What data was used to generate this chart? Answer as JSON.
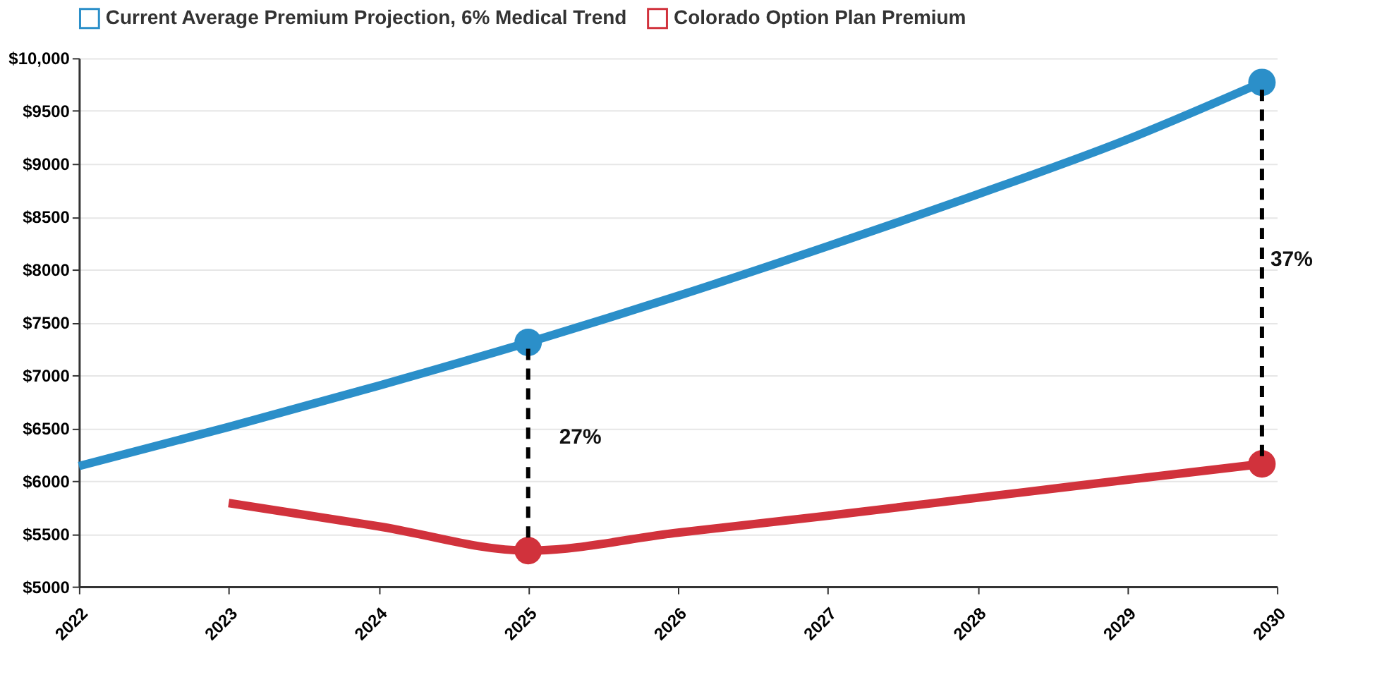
{
  "chart_data": {
    "type": "line",
    "xlim": [
      2022,
      2030
    ],
    "xticks": [
      2022,
      2023,
      2024,
      2025,
      2026,
      2027,
      2028,
      2029,
      2030
    ],
    "ylim": [
      5000,
      10000
    ],
    "yticks": [
      {
        "value": 5000,
        "label": "$5000"
      },
      {
        "value": 5500,
        "label": "$5500"
      },
      {
        "value": 6000,
        "label": "$6000"
      },
      {
        "value": 6500,
        "label": "$6500"
      },
      {
        "value": 7000,
        "label": "$7000"
      },
      {
        "value": 7500,
        "label": "$7500"
      },
      {
        "value": 8000,
        "label": "$8000"
      },
      {
        "value": 8500,
        "label": "$8500"
      },
      {
        "value": 9000,
        "label": "$9000"
      },
      {
        "value": 9500,
        "label": "$9500"
      },
      {
        "value": 10000,
        "label": "$10,000"
      }
    ],
    "grid": "y",
    "legend": "top left",
    "marker": "none",
    "series": [
      {
        "name": "Current Average Premium Projection, 6% Medical Trend",
        "color": "#2b8fc9",
        "x": [
          2022,
          2023,
          2024,
          2025,
          2026,
          2027,
          2028,
          2029,
          2029.9
        ],
        "values": [
          6140,
          6510,
          6900,
          7310,
          7750,
          8220,
          8710,
          9230,
          9770
        ]
      },
      {
        "name": "Colorado Option Plan Premium",
        "color": "#d1323c",
        "x": [
          2023,
          2024,
          2025,
          2026,
          2027,
          2028,
          2029,
          2029.9
        ],
        "values": [
          5790,
          5570,
          5340,
          5510,
          5670,
          5840,
          6010,
          6160
        ]
      },
      {
        "color": "#2b8fc9",
        "type": "scatter",
        "marker": "circle",
        "x": [
          2025,
          2029.9
        ],
        "values": [
          7310,
          9770
        ]
      },
      {
        "color": "#d1323c",
        "type": "scatter",
        "marker": "circle",
        "x": [
          2025,
          2029.9
        ],
        "values": [
          5340,
          6160
        ]
      },
      {
        "color": "#000000",
        "type": "line",
        "line_style": "dashed",
        "x": [
          2025,
          2025
        ],
        "values": [
          7250,
          5400
        ]
      },
      {
        "color": "#000000",
        "type": "line",
        "line_style": "dashed",
        "x": [
          2029.9,
          2029.9
        ],
        "values": [
          9700,
          6230
        ]
      }
    ],
    "annotations": [
      {
        "text": "27%",
        "x": 2025,
        "y": 6420
      },
      {
        "text": "37%",
        "x": 2029.9,
        "y": 8100
      }
    ]
  }
}
